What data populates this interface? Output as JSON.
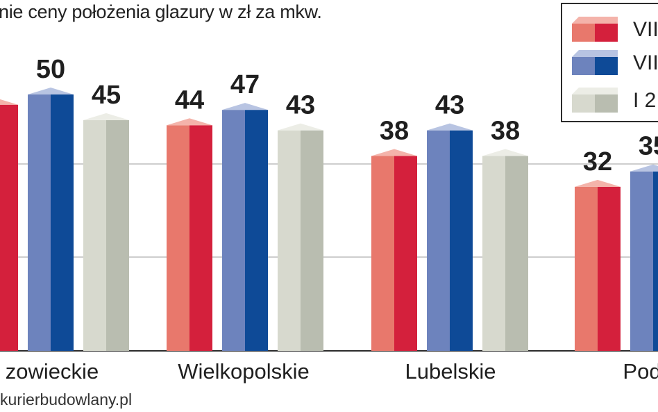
{
  "title": "nie ceny położenia glazury w zł za mkw.",
  "source": "kurierbudowlany.pl",
  "legend": {
    "items": [
      {
        "label": "VII",
        "color_front": "#e8786c",
        "color_side": "#d4203c",
        "color_top": "#f4b3aa"
      },
      {
        "label": "VII",
        "color_front": "#6d83bd",
        "color_side": "#0e4a97",
        "color_top": "#b8c4e2"
      },
      {
        "label": "I 2",
        "color_front": "#d7d9ce",
        "color_side": "#b9bdb0",
        "color_top": "#ecede6"
      }
    ]
  },
  "chart_data": {
    "type": "bar",
    "title": "nie ceny położenia glazury w zł za mkw.",
    "categories": [
      "zowieckie",
      "Wielkopolskie",
      "Lubelskie",
      "Pod"
    ],
    "series": [
      {
        "name": "VII",
        "values": [
          48,
          44,
          38,
          32
        ]
      },
      {
        "name": "VII",
        "values": [
          50,
          47,
          43,
          35
        ]
      },
      {
        "name": "I 2",
        "values": [
          45,
          43,
          38,
          null
        ]
      }
    ],
    "value_labels": [
      [
        "",
        "50",
        "45"
      ],
      [
        "44",
        "47",
        "43"
      ],
      [
        "38",
        "43",
        "38"
      ],
      [
        "32",
        "35",
        ""
      ]
    ],
    "ylim": [
      0,
      50
    ],
    "grid": true,
    "legend_position": "top-right",
    "xlabel": "",
    "ylabel": ""
  }
}
